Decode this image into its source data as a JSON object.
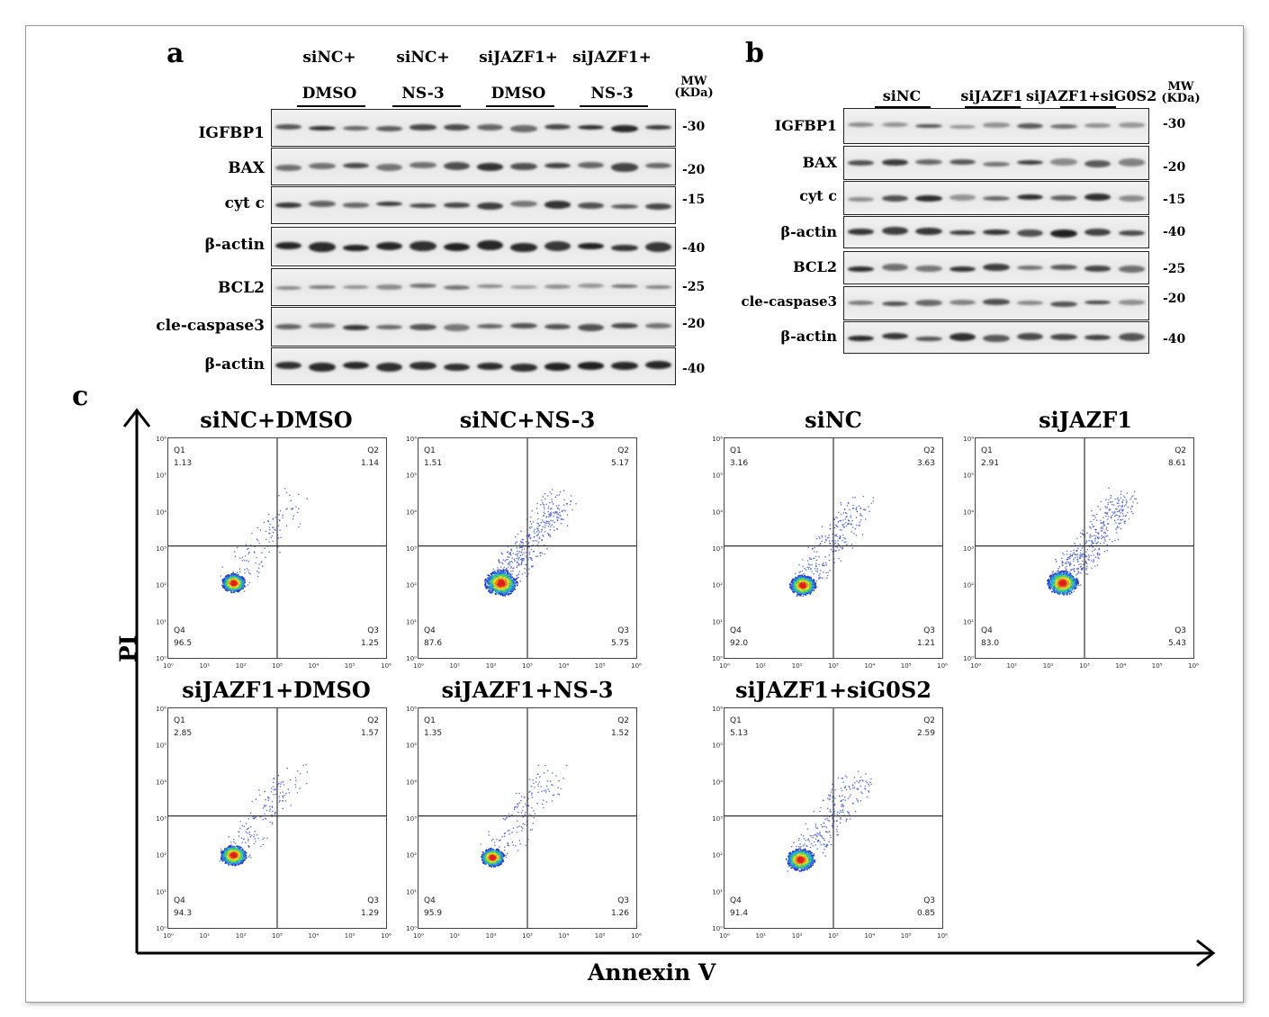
{
  "panel_a": {
    "label": "a",
    "groups": [
      {
        "top": "siNC+",
        "bottom": "DMSO"
      },
      {
        "top": "siNC+",
        "bottom": "NS-3"
      },
      {
        "top": "siJAZF1+",
        "bottom": "DMSO"
      },
      {
        "top": "siJAZF1+",
        "bottom": "NS-3"
      }
    ],
    "mw_header": [
      "MW",
      "(KDa)"
    ],
    "rows": [
      {
        "label": "IGFBP1",
        "mw": "-30"
      },
      {
        "label": "BAX",
        "mw": "-20"
      },
      {
        "label": "cyt c",
        "mw": "-15"
      },
      {
        "label": "β-actin",
        "mw": "-40"
      },
      {
        "label": "BCL2",
        "mw": "-25"
      },
      {
        "label": "cle-caspase3",
        "mw": "-20"
      },
      {
        "label": "β-actin",
        "mw": "-40"
      }
    ]
  },
  "panel_b": {
    "label": "b",
    "groups": [
      "siNC",
      "siJAZF1",
      "siJAZF1+siG0S2"
    ],
    "mw_header": [
      "MW",
      "(KDa)"
    ],
    "rows": [
      {
        "label": "IGFBP1",
        "mw": "-30"
      },
      {
        "label": "BAX",
        "mw": "-20"
      },
      {
        "label": "cyt c",
        "mw": "-15"
      },
      {
        "label": "β-actin",
        "mw": "-40"
      },
      {
        "label": "BCL2",
        "mw": "-25"
      },
      {
        "label": "cle-caspase3",
        "mw": "-20"
      },
      {
        "label": "β-actin",
        "mw": "-40"
      }
    ]
  },
  "panel_c": {
    "label": "c",
    "y_axis_title": "PI",
    "x_axis_title": "Annexin V",
    "tick_labels": [
      "10⁰",
      "10¹",
      "10²",
      "10³",
      "10⁴",
      "10⁵",
      "10⁶"
    ],
    "plots": [
      {
        "title": "siNC+DMSO",
        "Q1": "1.13",
        "Q2": "1.14",
        "Q3": "1.25",
        "Q4": "96.5"
      },
      {
        "title": "siNC+NS-3",
        "Q1": "1.51",
        "Q2": "5.17",
        "Q3": "5.75",
        "Q4": "87.6"
      },
      {
        "title": "siNC",
        "Q1": "3.16",
        "Q2": "3.63",
        "Q3": "1.21",
        "Q4": "92.0"
      },
      {
        "title": "siJAZF1",
        "Q1": "2.91",
        "Q2": "8.61",
        "Q3": "5.43",
        "Q4": "83.0"
      },
      {
        "title": "siJAZF1+DMSO",
        "Q1": "2.85",
        "Q2": "1.57",
        "Q3": "1.29",
        "Q4": "94.3"
      },
      {
        "title": "siJAZF1+NS-3",
        "Q1": "1.35",
        "Q2": "1.52",
        "Q3": "1.26",
        "Q4": "95.9"
      },
      {
        "title": "siJAZF1+siG0S2",
        "Q1": "5.13",
        "Q2": "2.59",
        "Q3": "0.85",
        "Q4": "91.4"
      }
    ]
  }
}
